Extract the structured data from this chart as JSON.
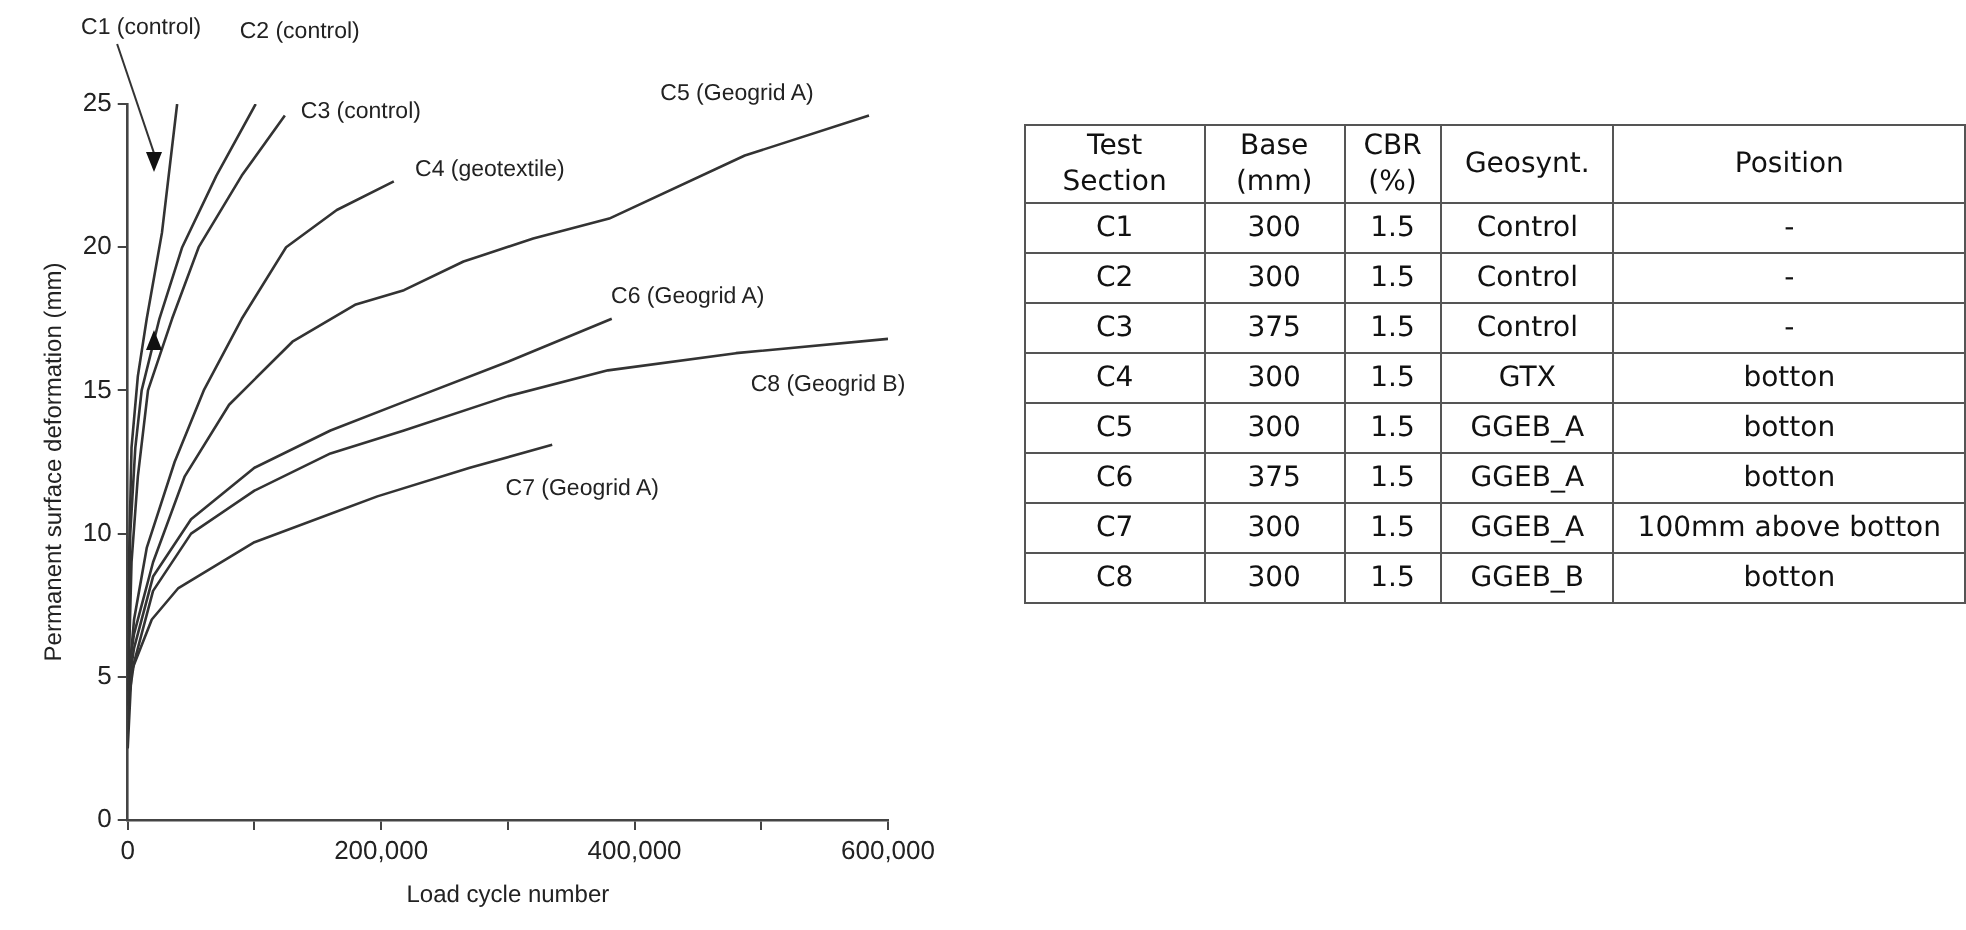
{
  "chart_data": [
    {
      "type": "line",
      "xlabel": "Load cycle number",
      "ylabel": "Permanent surface deformation (mm)",
      "xlim": [
        0,
        600000
      ],
      "ylim": [
        0,
        25
      ],
      "xticks": [
        0,
        {
          "value": 100000,
          "label": null
        },
        {
          "value": 200000,
          "label": "200,000"
        },
        {
          "value": 300000,
          "label": null
        },
        {
          "value": 400000,
          "label": "400,000"
        },
        {
          "value": 500000,
          "label": null
        },
        {
          "value": 600000,
          "label": "600,000"
        }
      ],
      "yticks": [
        0,
        5,
        10,
        15,
        20,
        25
      ],
      "grid": false,
      "legend": false,
      "marker": "none",
      "line_style": "solid",
      "series": [
        {
          "name": "C1 (control)",
          "color": "#333333",
          "x": [
            0,
            1000,
            3000,
            8000,
            15000,
            27000,
            39000
          ],
          "values": [
            3,
            9,
            13,
            15.5,
            17.5,
            20.5,
            25
          ]
        },
        {
          "name": "C2 (control)",
          "color": "#333333",
          "x": [
            0,
            2000,
            6000,
            11000,
            25000,
            43000,
            70000,
            101000
          ],
          "values": [
            3.5,
            10,
            13,
            15,
            17.5,
            20,
            22.5,
            25
          ]
        },
        {
          "name": "C3 (control)",
          "color": "#333333",
          "x": [
            0,
            3000,
            8000,
            16000,
            35000,
            56000,
            90000,
            124000
          ],
          "values": [
            4,
            9,
            12,
            15,
            17.5,
            20,
            22.5,
            24.6
          ]
        },
        {
          "name": "C4 (geotextile)",
          "color": "#333333",
          "x": [
            0,
            5000,
            15000,
            37000,
            60000,
            90000,
            125000,
            165000,
            210000
          ],
          "values": [
            4.5,
            7,
            9.5,
            12.5,
            15,
            17.5,
            20,
            21.3,
            22.3
          ]
        },
        {
          "name": "C5 (Geogrid A)",
          "color": "#333333",
          "x": [
            0,
            5000,
            20000,
            45000,
            80000,
            130000,
            180000,
            218000,
            265000,
            320000,
            380000,
            487000,
            585000
          ],
          "values": [
            5,
            6.5,
            9,
            12,
            14.5,
            16.7,
            18,
            18.5,
            19.5,
            20.3,
            21,
            23.2,
            24.6
          ]
        },
        {
          "name": "C6 (Geogrid A)",
          "color": "#333333",
          "x": [
            0,
            5000,
            20000,
            50000,
            100000,
            160000,
            218000,
            300000,
            382000
          ],
          "values": [
            4.5,
            6,
            8.5,
            10.5,
            12.3,
            13.6,
            14.6,
            16,
            17.5
          ]
        },
        {
          "name": "C7 (Geogrid A)",
          "color": "#333333",
          "x": [
            0,
            3000,
            19000,
            40000,
            100000,
            197000,
            270000,
            335000
          ],
          "values": [
            2.5,
            5.2,
            7,
            8.1,
            9.7,
            11.3,
            12.3,
            13.1
          ]
        },
        {
          "name": "C8 (Geogrid B)",
          "color": "#333333",
          "x": [
            0,
            5000,
            20000,
            50000,
            100000,
            160000,
            218000,
            300000,
            379000,
            480000,
            600000
          ],
          "values": [
            4,
            5.5,
            8,
            10,
            11.5,
            12.8,
            13.6,
            14.8,
            15.7,
            16.3,
            16.8
          ]
        }
      ]
    },
    {
      "type": "other",
      "categories": [
        "Test Section",
        "Base (mm)",
        "CBR (%)",
        "Geosynt.",
        "Position"
      ],
      "cell_labels": [
        [
          "C1",
          "300",
          "1.5",
          "Control",
          "-"
        ],
        [
          "C2",
          "300",
          "1.5",
          "Control",
          "-"
        ],
        [
          "C3",
          "375",
          "1.5",
          "Control",
          "-"
        ],
        [
          "C4",
          "300",
          "1.5",
          "GTX",
          "botton"
        ],
        [
          "C5",
          "300",
          "1.5",
          "GGEB_A",
          "botton"
        ],
        [
          "C6",
          "375",
          "1.5",
          "GGEB_A",
          "botton"
        ],
        [
          "C7",
          "300",
          "1.5",
          "GGEB_A",
          "100mm above botton"
        ],
        [
          "C8",
          "300",
          "1.5",
          "GGEB_B",
          "botton"
        ]
      ]
    }
  ]
}
